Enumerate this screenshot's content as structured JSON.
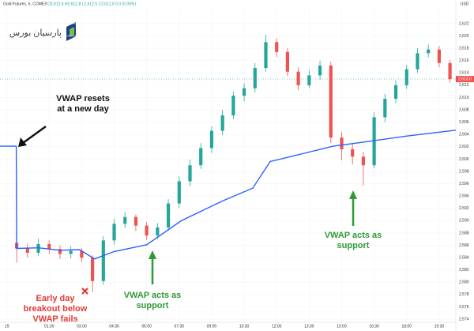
{
  "chart_data": {
    "type": "candlestick",
    "title": "Gold Futures, 5, COMEX",
    "ohlc_header": "O2,612.6 H2,612.8 L2,612.5 C2,612.6 0.0 (0.00%)",
    "currency": "USD",
    "logo": "پارسیان بورس",
    "x": [
      0,
      0.5,
      1,
      1.5,
      2,
      2.5,
      3,
      3.5,
      4,
      4.5,
      5,
      5.5,
      6,
      6.5,
      7,
      7.5,
      8,
      8.5,
      9,
      9.5,
      10,
      10.5,
      11,
      11.5,
      12,
      12.5,
      13,
      13.5,
      14,
      14.5,
      15,
      15.5,
      16,
      16.5,
      17,
      17.5,
      18,
      18.5,
      19,
      19.5,
      20
    ],
    "open": [
      2586.4,
      2585.5,
      2584.8,
      2586.2,
      2585.4,
      2584.6,
      2585.1,
      2584.0,
      2580.2,
      2586.8,
      2589.5,
      2590.6,
      2589.2,
      2587.6,
      2588.9,
      2592.8,
      2596.4,
      2599.0,
      2601.8,
      2604.6,
      2607.1,
      2610.3,
      2611.5,
      2614.8,
      2619.0,
      2617.4,
      2614.2,
      2612.0,
      2613.6,
      2615.2,
      2603.5,
      2601.6,
      2600.4,
      2599.0,
      2606.8,
      2609.8,
      2612.0,
      2614.6,
      2617.2,
      2617.8,
      2615.6
    ],
    "high": [
      2587.0,
      2586.3,
      2587.1,
      2586.8,
      2586.0,
      2585.9,
      2585.6,
      2584.4,
      2587.5,
      2590.3,
      2591.4,
      2591.0,
      2589.8,
      2589.6,
      2593.5,
      2597.2,
      2599.9,
      2602.6,
      2605.3,
      2608.0,
      2611.0,
      2612.3,
      2615.6,
      2620.2,
      2619.6,
      2618.0,
      2614.9,
      2614.4,
      2616.0,
      2615.8,
      2604.4,
      2602.5,
      2601.2,
      2607.6,
      2610.6,
      2612.8,
      2615.3,
      2618.0,
      2618.6,
      2618.4,
      2616.1
    ],
    "low": [
      2583.2,
      2584.0,
      2584.3,
      2584.6,
      2583.8,
      2583.9,
      2583.2,
      2578.4,
      2579.6,
      2586.1,
      2588.8,
      2588.3,
      2586.9,
      2587.0,
      2588.4,
      2592.1,
      2595.6,
      2598.4,
      2601.0,
      2603.9,
      2606.5,
      2609.4,
      2610.8,
      2614.2,
      2616.6,
      2613.5,
      2611.2,
      2611.5,
      2612.9,
      2602.6,
      2599.8,
      2599.1,
      2595.7,
      2598.5,
      2606.0,
      2609.1,
      2611.4,
      2614.0,
      2616.5,
      2614.9,
      2612.4
    ],
    "close": [
      2585.5,
      2584.8,
      2586.2,
      2585.4,
      2584.6,
      2585.1,
      2584.0,
      2580.2,
      2586.8,
      2589.5,
      2590.6,
      2589.2,
      2587.6,
      2588.9,
      2592.8,
      2596.4,
      2599.0,
      2601.8,
      2604.6,
      2607.1,
      2610.3,
      2611.5,
      2614.8,
      2619.0,
      2617.4,
      2614.2,
      2612.0,
      2613.6,
      2615.2,
      2603.5,
      2601.6,
      2600.4,
      2599.0,
      2606.8,
      2609.8,
      2612.0,
      2614.6,
      2617.2,
      2617.8,
      2615.6,
      2613.0
    ],
    "up_color": "#26a69a",
    "down_color": "#ef5350",
    "vwap": {
      "color": "#2962ff",
      "x": [
        -0.77,
        -0.02,
        0.0,
        1,
        2,
        2.9,
        3.6,
        4.5,
        6,
        7.6,
        9.5,
        10.9,
        11.7,
        13.1,
        14.6,
        16.1,
        17.9,
        20.27
      ],
      "values": [
        2602.1,
        2602.1,
        2585.5,
        2585.6,
        2585.2,
        2585.3,
        2583.8,
        2585.0,
        2586.1,
        2590.0,
        2593.2,
        2595.3,
        2599.6,
        2600.8,
        2602.1,
        2602.8,
        2603.7,
        2604.7
      ]
    },
    "price_line": {
      "value": 2613.0,
      "label": "2,613.0"
    },
    "xlim": [
      -0.77,
      20.27
    ],
    "ylim": [
      2573.5,
      2624.3
    ],
    "xticks": [
      {
        "value": -0.45,
        "label": "19"
      },
      {
        "value": 1.5,
        "label": "01:30"
      },
      {
        "value": 3,
        "label": "03:00"
      },
      {
        "value": 4.5,
        "label": "04:30"
      },
      {
        "value": 6,
        "label": "06:00"
      },
      {
        "value": 7.5,
        "label": "07:30"
      },
      {
        "value": 9,
        "label": "09:00"
      },
      {
        "value": 10.5,
        "label": "10:30"
      },
      {
        "value": 12,
        "label": "12:00"
      },
      {
        "value": 13.5,
        "label": "13:30"
      },
      {
        "value": 15,
        "label": "15:00"
      },
      {
        "value": 16.5,
        "label": "16:30"
      },
      {
        "value": 18,
        "label": "18:00"
      },
      {
        "value": 19.5,
        "label": "19:30"
      }
    ],
    "yticks": [
      {
        "value": 2574,
        "label": "2,574"
      },
      {
        "value": 2576,
        "label": "2,576"
      },
      {
        "value": 2578,
        "label": "2,578"
      },
      {
        "value": 2580,
        "label": "2,580"
      },
      {
        "value": 2582,
        "label": "2,582"
      },
      {
        "value": 2584,
        "label": "2,584"
      },
      {
        "value": 2586,
        "label": "2,586"
      },
      {
        "value": 2588,
        "label": "2,588"
      },
      {
        "value": 2590,
        "label": "2,590"
      },
      {
        "value": 2592,
        "label": "2,592"
      },
      {
        "value": 2594,
        "label": "2,594"
      },
      {
        "value": 2596,
        "label": "2,596"
      },
      {
        "value": 2598,
        "label": "2,598"
      },
      {
        "value": 2600,
        "label": "2,600"
      },
      {
        "value": 2602,
        "label": "2,602"
      },
      {
        "value": 2604,
        "label": "2,604"
      },
      {
        "value": 2606,
        "label": "2,606"
      },
      {
        "value": 2608,
        "label": "2,608"
      },
      {
        "value": 2610,
        "label": "2,610"
      },
      {
        "value": 2612,
        "label": "2,612"
      },
      {
        "value": 2614,
        "label": "2,614"
      },
      {
        "value": 2616,
        "label": "2,616"
      },
      {
        "value": 2618,
        "label": "2,618"
      },
      {
        "value": 2620,
        "label": "2,620"
      },
      {
        "value": 2622,
        "label": "2,622"
      }
    ],
    "grid": true,
    "annotations": [
      {
        "lines": [
          "VWAP resets",
          "at a new day"
        ],
        "color": "#111111"
      },
      {
        "lines": [
          "Early day",
          "breakout below",
          "VWAP fails"
        ],
        "color": "#e53935"
      },
      {
        "lines": [
          "VWAP acts as",
          "support"
        ],
        "color": "#2e9a35"
      },
      {
        "lines": [
          "VWAP acts as",
          "support"
        ],
        "color": "#2e9a35"
      }
    ]
  }
}
